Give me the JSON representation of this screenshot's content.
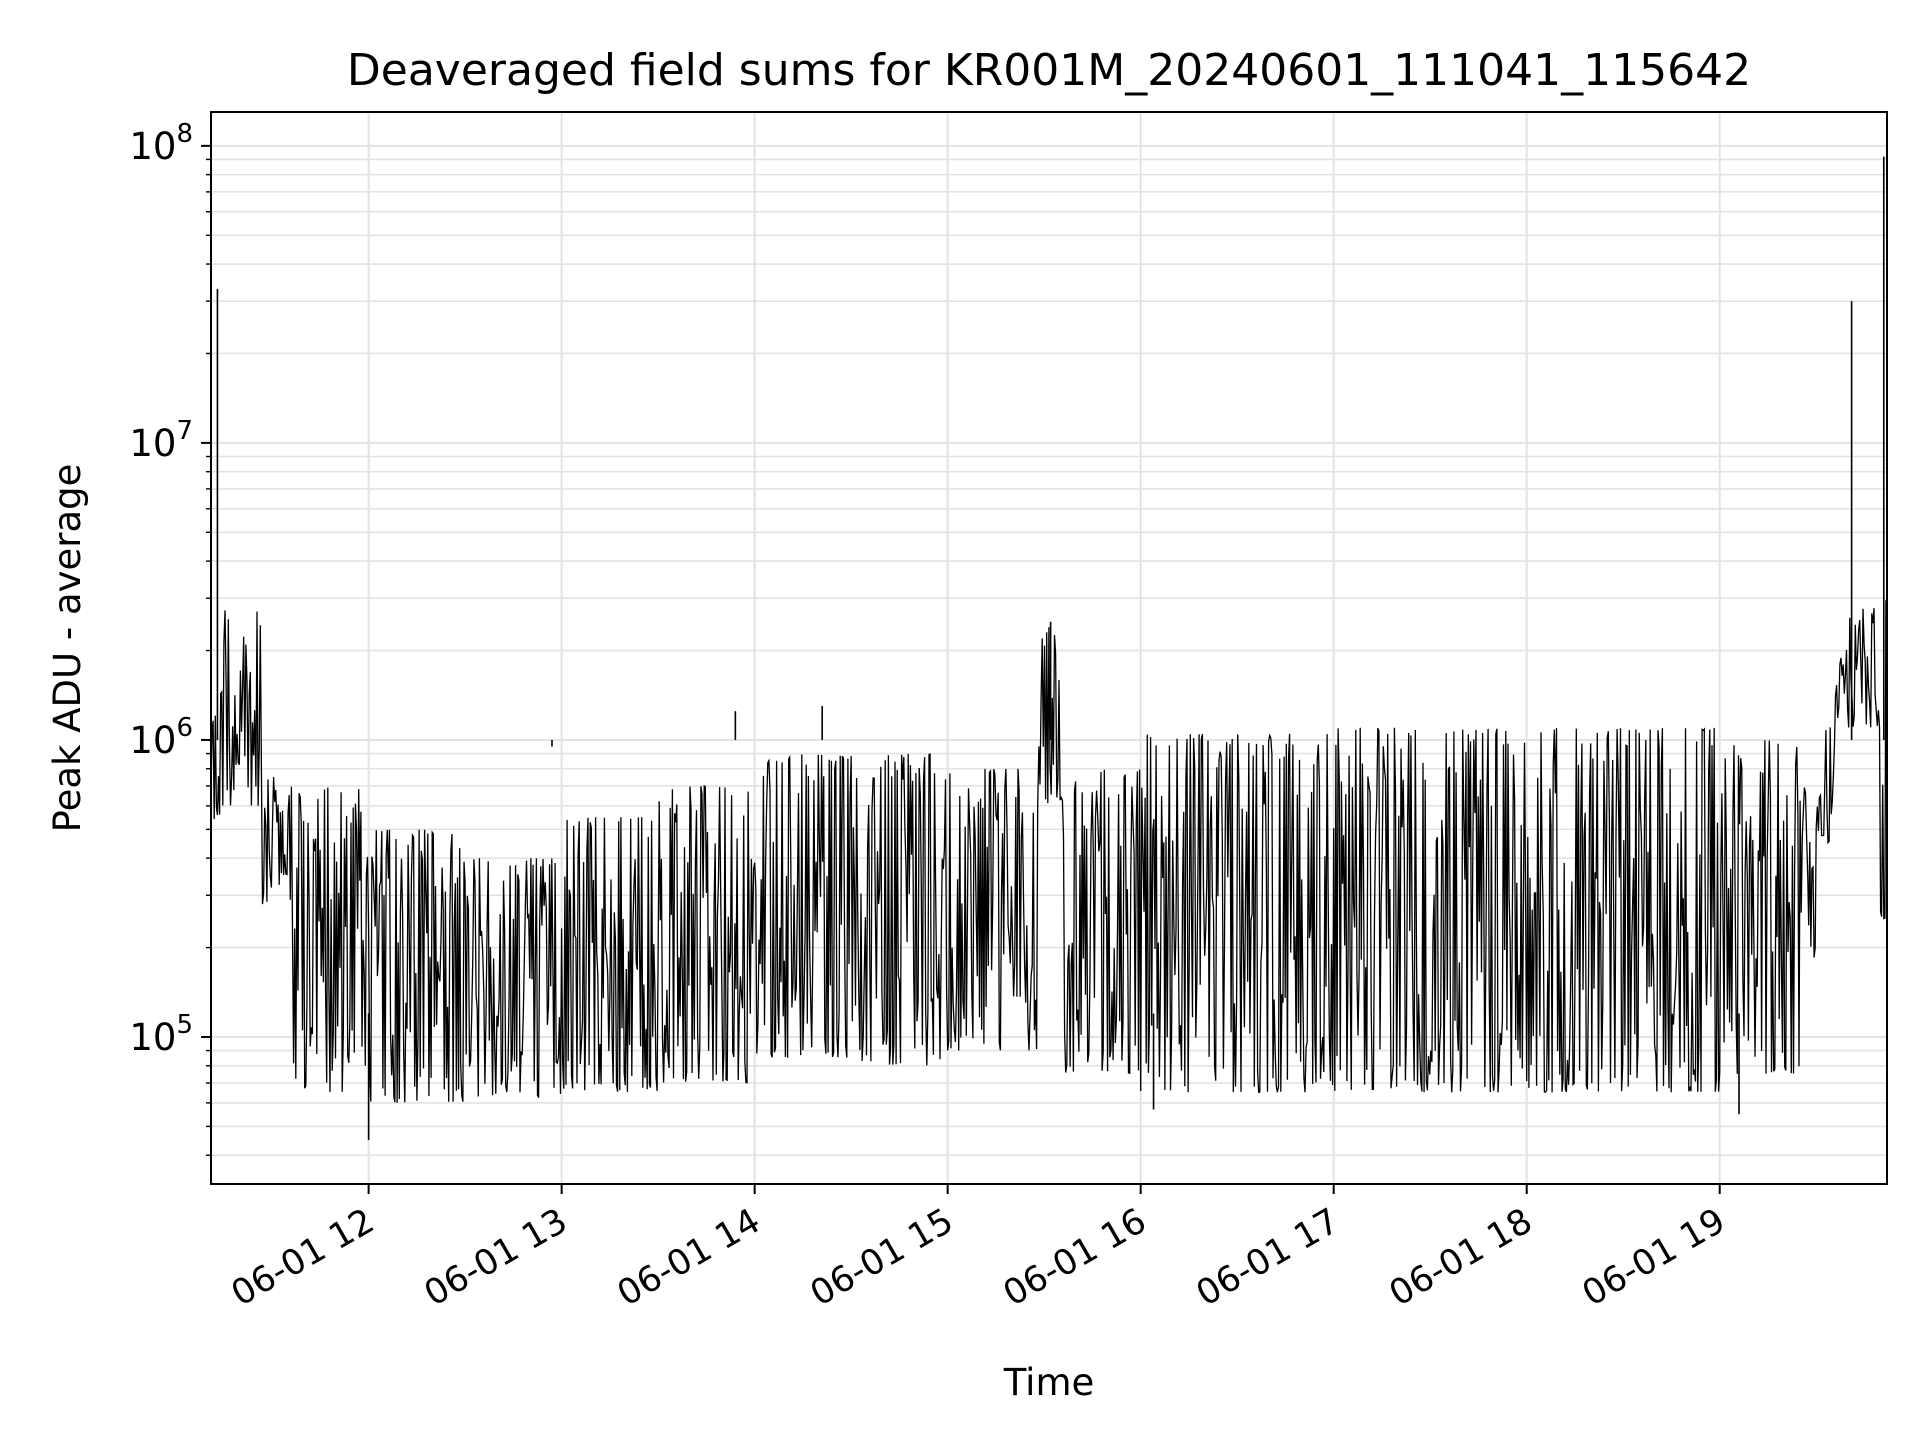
{
  "chart_data": {
    "type": "line",
    "title": "Deaveraged field sums for KR001M_20240601_111041_115642",
    "xlabel": "Time",
    "ylabel": "Peak ADU - average",
    "yscale": "log",
    "ylim": [
      32000,
      130000000
    ],
    "xlim": [
      "2024-06-01T11:11:00",
      "2024-06-01T19:52:00"
    ],
    "grid": true,
    "x_ticks": [
      "06-01 12",
      "06-01 13",
      "06-01 14",
      "06-01 15",
      "06-01 16",
      "06-01 17",
      "06-01 18",
      "06-01 19"
    ],
    "x_tick_times": [
      "2024-06-01T12:00:00",
      "2024-06-01T13:00:00",
      "2024-06-01T14:00:00",
      "2024-06-01T15:00:00",
      "2024-06-01T16:00:00",
      "2024-06-01T17:00:00",
      "2024-06-01T18:00:00",
      "2024-06-01T19:00:00"
    ],
    "y_ticks": [
      {
        "value": 100000,
        "base": "10",
        "exp": "5"
      },
      {
        "value": 1000000,
        "base": "10",
        "exp": "6"
      },
      {
        "value": 10000000,
        "base": "10",
        "exp": "7"
      },
      {
        "value": 100000000,
        "base": "10",
        "exp": "8"
      }
    ],
    "series_color": "#000000",
    "series": [
      {
        "label": "",
        "segments": [
          {
            "start": "2024-06-01T11:11:00",
            "end": "2024-06-01T11:15:00",
            "low": 500000,
            "high": 1500000
          },
          {
            "start": "2024-06-01T11:15:00",
            "end": "2024-06-01T11:27:00",
            "low": 600000,
            "high": 2800000
          },
          {
            "start": "2024-06-01T11:27:00",
            "end": "2024-06-01T11:36:00",
            "low": 280000,
            "high": 750000
          },
          {
            "start": "2024-06-01T11:36:00",
            "end": "2024-06-01T12:00:00",
            "low": 65000,
            "high": 700000
          },
          {
            "start": "2024-06-01T12:00:00",
            "end": "2024-06-01T12:30:00",
            "low": 60000,
            "high": 500000
          },
          {
            "start": "2024-06-01T12:30:00",
            "end": "2024-06-01T13:00:00",
            "low": 62000,
            "high": 400000
          },
          {
            "start": "2024-06-01T13:00:00",
            "end": "2024-06-01T13:30:00",
            "low": 65000,
            "high": 550000
          },
          {
            "start": "2024-06-01T13:30:00",
            "end": "2024-06-01T14:00:00",
            "low": 70000,
            "high": 700000
          },
          {
            "start": "2024-06-01T14:00:00",
            "end": "2024-06-01T14:30:00",
            "low": 85000,
            "high": 900000
          },
          {
            "start": "2024-06-01T14:30:00",
            "end": "2024-06-01T15:00:00",
            "low": 80000,
            "high": 900000
          },
          {
            "start": "2024-06-01T15:00:00",
            "end": "2024-06-01T15:28:00",
            "low": 90000,
            "high": 800000
          },
          {
            "start": "2024-06-01T15:28:00",
            "end": "2024-06-01T15:36:00",
            "low": 600000,
            "high": 2400000
          },
          {
            "start": "2024-06-01T15:36:00",
            "end": "2024-06-01T16:00:00",
            "low": 75000,
            "high": 800000
          },
          {
            "start": "2024-06-01T16:00:00",
            "end": "2024-06-01T17:00:00",
            "low": 65000,
            "high": 1050000
          },
          {
            "start": "2024-06-01T17:00:00",
            "end": "2024-06-01T18:00:00",
            "low": 65000,
            "high": 1100000
          },
          {
            "start": "2024-06-01T18:00:00",
            "end": "2024-06-01T19:00:00",
            "low": 65000,
            "high": 1100000
          },
          {
            "start": "2024-06-01T19:00:00",
            "end": "2024-06-01T19:25:00",
            "low": 75000,
            "high": 1000000
          },
          {
            "start": "2024-06-01T19:25:00",
            "end": "2024-06-01T19:31:00",
            "low": 180000,
            "high": 700000
          },
          {
            "start": "2024-06-01T19:31:00",
            "end": "2024-06-01T19:36:00",
            "low": 450000,
            "high": 1200000
          },
          {
            "start": "2024-06-01T19:36:00",
            "end": "2024-06-01T19:50:00",
            "low": 1100000,
            "high": 2800000
          },
          {
            "start": "2024-06-01T19:50:00",
            "end": "2024-06-01T19:52:00",
            "low": 250000,
            "high": 3000000
          }
        ],
        "spikes": [
          {
            "time": "2024-06-01T11:13:00",
            "value": 33000000
          },
          {
            "time": "2024-06-01T12:00:00",
            "value": 45000
          },
          {
            "time": "2024-06-01T12:57:00",
            "value": 950000
          },
          {
            "time": "2024-06-01T13:54:00",
            "value": 1250000
          },
          {
            "time": "2024-06-01T14:21:00",
            "value": 1300000
          },
          {
            "time": "2024-06-01T15:32:00",
            "value": 2500000
          },
          {
            "time": "2024-06-01T16:04:00",
            "value": 57000
          },
          {
            "time": "2024-06-01T19:06:00",
            "value": 55000
          },
          {
            "time": "2024-06-01T19:41:00",
            "value": 30000000
          },
          {
            "time": "2024-06-01T19:51:00",
            "value": 92000000
          }
        ]
      }
    ]
  }
}
